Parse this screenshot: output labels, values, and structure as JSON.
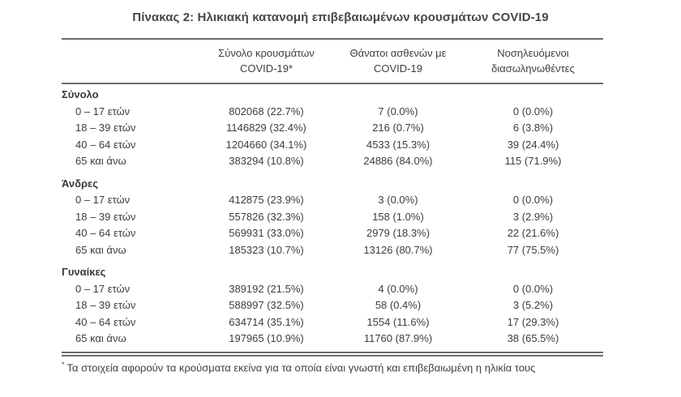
{
  "page": {
    "background_color": "#ffffff",
    "text_color": "#3d3d3d",
    "rule_color": "#6b6b6b"
  },
  "title": "Πίνακας 2: Ηλικιακή κατανομή επιβεβαιωμένων κρουσμάτων COVID-19",
  "table": {
    "type": "table",
    "col_headers": [
      {
        "line1": "Σύνολο κρουσμάτων",
        "line2": "COVID-19*"
      },
      {
        "line1": "Θάνατοι ασθενών με",
        "line2": "COVID-19"
      },
      {
        "line1": "Νοσηλευόμενοι",
        "line2": "διασωληνωθέντες"
      }
    ],
    "sections": [
      {
        "label": "Σύνολο",
        "rows": [
          {
            "label": "0 – 17 ετών",
            "cases": "802068 (22.7%)",
            "deaths": "7 (0.0%)",
            "intubated": "0 (0.0%)"
          },
          {
            "label": "18 – 39 ετών",
            "cases": "1146829 (32.4%)",
            "deaths": "216 (0.7%)",
            "intubated": "6 (3.8%)"
          },
          {
            "label": "40 – 64 ετών",
            "cases": "1204660 (34.1%)",
            "deaths": "4533 (15.3%)",
            "intubated": "39 (24.4%)"
          },
          {
            "label": "65 και άνω",
            "cases": "383294 (10.8%)",
            "deaths": "24886 (84.0%)",
            "intubated": "115 (71.9%)"
          }
        ]
      },
      {
        "label": "Άνδρες",
        "rows": [
          {
            "label": "0 – 17 ετών",
            "cases": "412875 (23.9%)",
            "deaths": "3 (0.0%)",
            "intubated": "0 (0.0%)"
          },
          {
            "label": "18 – 39 ετών",
            "cases": "557826 (32.3%)",
            "deaths": "158 (1.0%)",
            "intubated": "3 (2.9%)"
          },
          {
            "label": "40 – 64 ετών",
            "cases": "569931 (33.0%)",
            "deaths": "2979 (18.3%)",
            "intubated": "22 (21.6%)"
          },
          {
            "label": "65 και άνω",
            "cases": "185323 (10.7%)",
            "deaths": "13126 (80.7%)",
            "intubated": "77 (75.5%)"
          }
        ]
      },
      {
        "label": "Γυναίκες",
        "rows": [
          {
            "label": "0 – 17 ετών",
            "cases": "389192 (21.5%)",
            "deaths": "4 (0.0%)",
            "intubated": "0 (0.0%)"
          },
          {
            "label": "18 – 39 ετών",
            "cases": "588997 (32.5%)",
            "deaths": "58 (0.4%)",
            "intubated": "3 (5.2%)"
          },
          {
            "label": "40 – 64 ετών",
            "cases": "634714 (35.1%)",
            "deaths": "1554 (11.6%)",
            "intubated": "17 (29.3%)"
          },
          {
            "label": "65 και άνω",
            "cases": "197965 (10.9%)",
            "deaths": "11760 (87.9%)",
            "intubated": "38 (65.5%)"
          }
        ]
      }
    ]
  },
  "footnote": {
    "marker": "*",
    "text": "Τα στοιχεία αφορούν τα κρούσματα εκείνα για τα οποία είναι γνωστή και επιβεβαιωμένη η ηλικία τους"
  }
}
